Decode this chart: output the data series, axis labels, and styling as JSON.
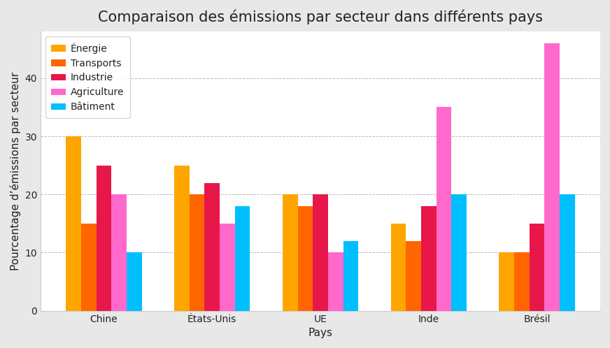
{
  "title": "Comparaison des émissions par secteur dans différents pays",
  "xlabel": "Pays",
  "ylabel": "Pourcentage d’émissions par secteur",
  "categories": [
    "Chine",
    "États-Unis",
    "UE",
    "Inde",
    "Brésil"
  ],
  "sectors": [
    "Énergie",
    "Transports",
    "Industrie",
    "Agriculture",
    "Bâtiment"
  ],
  "colors": [
    "#FFA500",
    "#FF6600",
    "#E8174A",
    "#FF69CC",
    "#00BFFF"
  ],
  "values": {
    "Énergie": [
      30,
      25,
      20,
      15,
      10
    ],
    "Transports": [
      15,
      20,
      18,
      12,
      10
    ],
    "Industrie": [
      25,
      22,
      20,
      18,
      15
    ],
    "Agriculture": [
      20,
      15,
      10,
      35,
      46
    ],
    "Bâtiment": [
      10,
      18,
      12,
      20,
      20
    ]
  },
  "ylim": [
    0,
    48
  ],
  "yticks": [
    0,
    10,
    20,
    30,
    40
  ],
  "figure_bg_color": "#e8e8e8",
  "plot_bg_color": "#ffffff",
  "grid_color": "#aaaaaa",
  "text_color": "#222222",
  "title_fontsize": 15,
  "label_fontsize": 11,
  "tick_fontsize": 10,
  "legend_fontsize": 10,
  "bar_width": 0.14
}
